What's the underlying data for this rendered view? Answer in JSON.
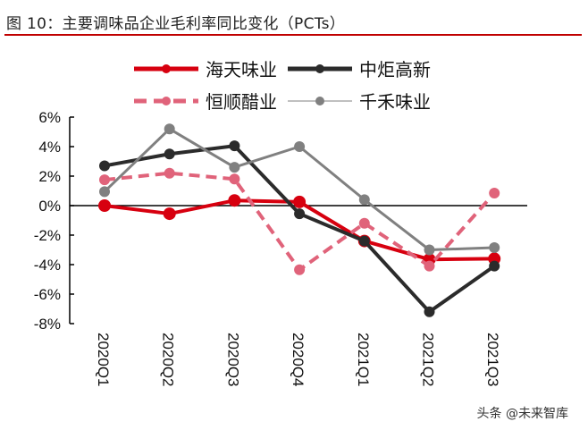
{
  "title": "图 10：主要调味品企业毛利率同比变化（PCTs）",
  "watermark": "头条 @未来智库",
  "chart_data": {
    "type": "line",
    "title": "图 10：主要调味品企业毛利率同比变化（PCTs）",
    "categories": [
      "2020Q1",
      "2020Q2",
      "2020Q3",
      "2020Q4",
      "2021Q1",
      "2021Q2",
      "2021Q3"
    ],
    "ylim": [
      -8,
      6
    ],
    "yticks": [
      "6%",
      "4%",
      "2%",
      "0%",
      "-2%",
      "-4%",
      "-6%",
      "-8%"
    ],
    "ytick_values": [
      6,
      4,
      2,
      0,
      -2,
      -4,
      -6,
      -8
    ],
    "legend_position": "top",
    "grid": false,
    "series": [
      {
        "name": "海天味业",
        "color": "#d7000f",
        "style": "solid",
        "width": 4,
        "marker": 7,
        "values": [
          0.0,
          -0.55,
          0.35,
          0.25,
          -2.4,
          -3.65,
          -3.6
        ]
      },
      {
        "name": "中炬高新",
        "color": "#2b2b2b",
        "style": "solid",
        "width": 4,
        "marker": 6,
        "values": [
          2.7,
          3.5,
          4.05,
          -0.55,
          -2.4,
          -7.2,
          -4.1
        ]
      },
      {
        "name": "恒顺醋业",
        "color": "#e0637a",
        "style": "dashed",
        "width": 4,
        "marker": 6,
        "values": [
          1.75,
          2.2,
          1.8,
          -4.35,
          -1.2,
          -4.1,
          0.85
        ]
      },
      {
        "name": "千禾味业",
        "color": "#808080",
        "style": "solid",
        "width": 3,
        "marker": 6,
        "legend_thin": true,
        "values": [
          0.95,
          5.2,
          2.6,
          4.0,
          0.4,
          -3.0,
          -2.85
        ]
      }
    ]
  }
}
